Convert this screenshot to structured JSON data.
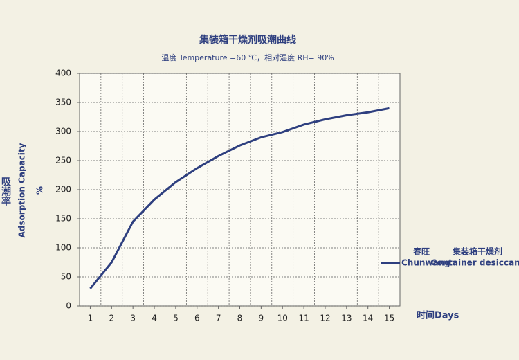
{
  "chart_data": {
    "type": "line",
    "title": "集装箱干燥剂吸潮曲线",
    "subtitle": "温度 Temperature =60 ℃，相对湿度 RH= 90%",
    "y_label_cn": "吸潮率",
    "y_label": "Adsorption Capacity",
    "y_unit": "%",
    "x_label": "时间Days",
    "legend_labels": [
      "春旺",
      "集装箱干燥剂",
      "Container desiccant"
    ],
    "x": [
      1,
      2,
      3,
      4,
      5,
      6,
      7,
      8,
      9,
      10,
      11,
      12,
      13,
      14,
      15
    ],
    "series": [
      {
        "name": "Chunwang",
        "color": "#2e3f7f",
        "values": [
          30,
          75,
          145,
          183,
          213,
          237,
          258,
          276,
          290,
          299,
          312,
          321,
          328,
          333,
          340
        ]
      }
    ],
    "xlim": [
      0.5,
      15.5
    ],
    "xticks": [
      1,
      2,
      3,
      4,
      5,
      6,
      7,
      8,
      9,
      10,
      11,
      12,
      13,
      14,
      15
    ],
    "ylim": [
      0,
      400
    ],
    "yticks": [
      0,
      50,
      100,
      150,
      200,
      250,
      300,
      350,
      400
    ],
    "grid": true
  }
}
